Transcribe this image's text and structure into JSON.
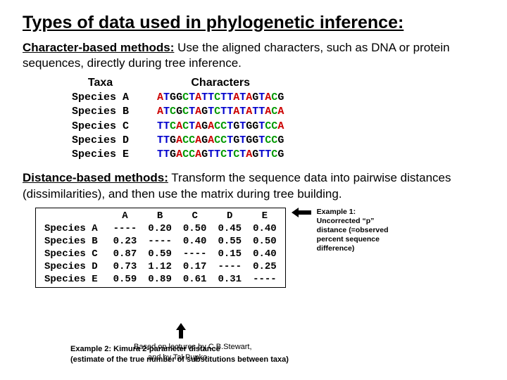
{
  "title": "Types of data used in phylogenetic inference:",
  "char_methods": {
    "lead": "Character-based methods:",
    "rest": "  Use the aligned characters, such as DNA or protein sequences, directly during tree inference."
  },
  "seq": {
    "taxa_header": "Taxa",
    "chars_header": "Characters",
    "taxa": [
      "Species A",
      "Species B",
      "Species C",
      "Species D",
      "Species E"
    ],
    "sequences": [
      "ATGGCTATTCTTATAGTACG",
      "ATCGCTAGTCTTATATTACA",
      "TTCACTAGACCTGTGGTCCA",
      "TTGACCAGACCTGTGGTCCG",
      "TTGACCAGTTCTCTAGTTCG"
    ],
    "colors": {
      "A": "#cc0000",
      "T": "#0000cc",
      "G": "#000000",
      "C": "#009900"
    }
  },
  "dist_methods": {
    "lead": "Distance-based methods:",
    "rest": "  Transform the sequence data into pairwise distances (dissimilarities), and then use the matrix during tree building."
  },
  "matrix": {
    "row_labels": [
      "Species A",
      "Species B",
      "Species C",
      "Species D",
      "Species E"
    ],
    "col_labels": [
      "A",
      "B",
      "C",
      "D",
      "E"
    ],
    "cells": [
      [
        "----",
        "0.20",
        "0.50",
        "0.45",
        "0.40"
      ],
      [
        "0.23",
        "----",
        "0.40",
        "0.55",
        "0.50"
      ],
      [
        "0.87",
        "0.59",
        "----",
        "0.15",
        "0.40"
      ],
      [
        "0.73",
        "1.12",
        "0.17",
        "----",
        "0.25"
      ],
      [
        "0.59",
        "0.89",
        "0.61",
        "0.31",
        "----"
      ]
    ]
  },
  "example1": "Example 1: Uncorrected “p” distance (=observed percent sequence difference)",
  "example2_lines": {
    "a1": "Based on lectures by C.B.Stewart,",
    "a2": "Example 2: Kimura 2-parameter distance",
    "b1": "and by Tal Pupko",
    "b2": "(estimate of the true number of substitutions between taxa)"
  }
}
